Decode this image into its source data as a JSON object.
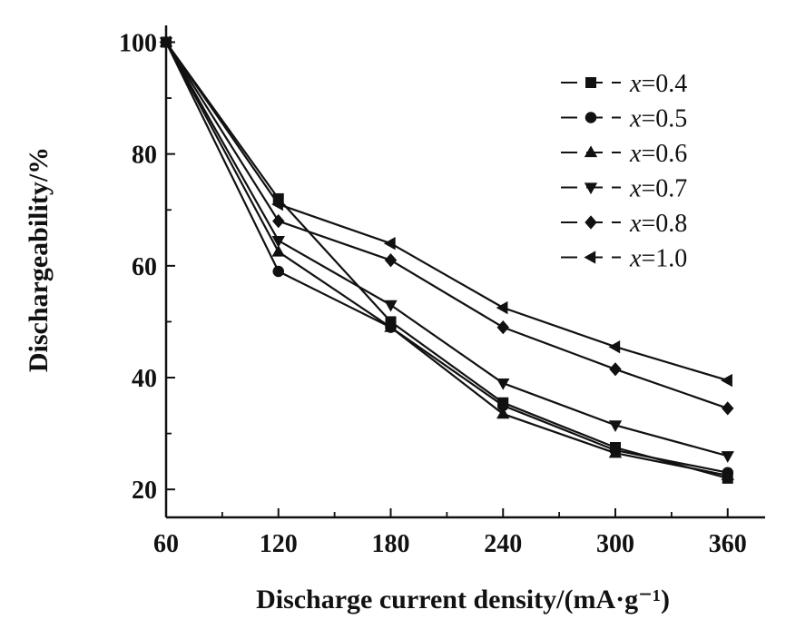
{
  "chart_data": {
    "type": "line",
    "title": "",
    "xlabel": "Discharge current density/(mA·g⁻¹)",
    "ylabel": "Dischargeability/%",
    "x": [
      60,
      120,
      180,
      240,
      300,
      360
    ],
    "xlim": [
      60,
      380
    ],
    "ylim": [
      15,
      103
    ],
    "xticks": [
      60,
      120,
      180,
      240,
      300,
      360
    ],
    "yticks": [
      20,
      40,
      60,
      80,
      100
    ],
    "grid": false,
    "legend_position": "top-right",
    "colors": {
      "line": "#111111",
      "axis": "#111111",
      "background": "#ffffff"
    },
    "series": [
      {
        "name": "x=0.4",
        "legend_var": "x",
        "legend_value": "=0.4",
        "marker": "square",
        "values": [
          100,
          72,
          50,
          35.5,
          27.5,
          22
        ]
      },
      {
        "name": "x=0.5",
        "legend_var": "x",
        "legend_value": "=0.5",
        "marker": "circle",
        "values": [
          100,
          59,
          49,
          35,
          27,
          23
        ]
      },
      {
        "name": "x=0.6",
        "legend_var": "x",
        "legend_value": "=0.6",
        "marker": "triangle-up",
        "values": [
          100,
          62.5,
          49,
          33.5,
          26.5,
          22.5
        ]
      },
      {
        "name": "x=0.7",
        "legend_var": "x",
        "legend_value": "=0.7",
        "marker": "triangle-down",
        "values": [
          100,
          64.5,
          53,
          39,
          31.5,
          26
        ]
      },
      {
        "name": "x=0.8",
        "legend_var": "x",
        "legend_value": "=0.8",
        "marker": "diamond",
        "values": [
          100,
          68,
          61,
          49,
          41.5,
          34.5
        ]
      },
      {
        "name": "x=1.0",
        "legend_var": "x",
        "legend_value": "=1.0",
        "marker": "triangle-left",
        "values": [
          100,
          71,
          64,
          52.5,
          45.5,
          39.5
        ]
      }
    ]
  }
}
